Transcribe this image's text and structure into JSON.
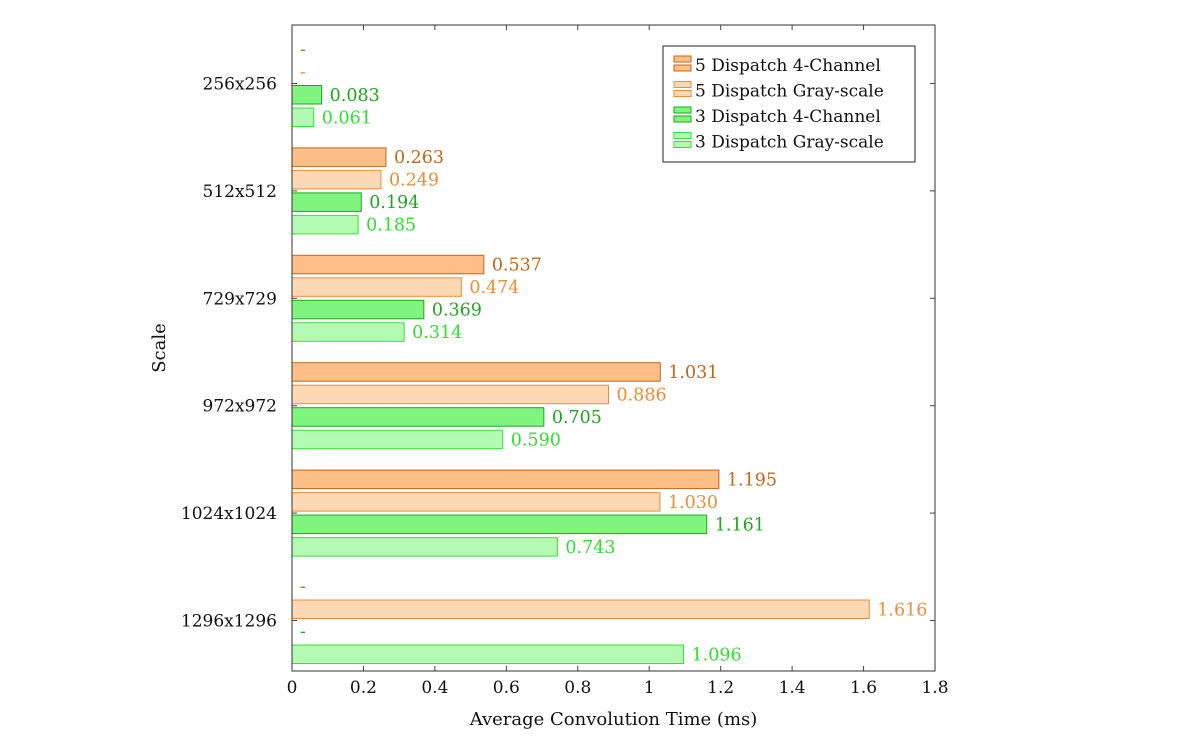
{
  "chart_data": {
    "type": "bar",
    "orientation": "horizontal",
    "title": "",
    "xlabel": "Average Convolution Time (ms)",
    "ylabel": "Scale",
    "xlim": [
      0,
      1.8
    ],
    "xticks": [
      0,
      0.2,
      0.4,
      0.6,
      0.8,
      1,
      1.2,
      1.4,
      1.6,
      1.8
    ],
    "xtick_labels": [
      "0",
      "0.2",
      "0.4",
      "0.6",
      "0.8",
      "1",
      "1.2",
      "1.4",
      "1.6",
      "1.8"
    ],
    "categories": [
      "256x256",
      "512x512",
      "729x729",
      "972x972",
      "1024x1024",
      "1296x1296"
    ],
    "legend_position": "top-right",
    "missing_marker": "-",
    "series": [
      {
        "name": "5 Dispatch 4-Channel",
        "fill": "#fdbf86",
        "stroke": "#c4661a",
        "label_color": "#c4661a",
        "values": [
          null,
          0.263,
          0.537,
          1.031,
          1.195,
          null
        ],
        "labels": [
          "-",
          "0.263",
          "0.537",
          "1.031",
          "1.195",
          "-"
        ]
      },
      {
        "name": "5 Dispatch Gray-scale",
        "fill": "#fdd8b5",
        "stroke": "#f08c33",
        "label_color": "#f08c33",
        "values": [
          null,
          0.249,
          0.474,
          0.886,
          1.03,
          1.616
        ],
        "labels": [
          "-",
          "0.249",
          "0.474",
          "0.886",
          "1.030",
          "1.616"
        ]
      },
      {
        "name": "3 Dispatch 4-Channel",
        "fill": "#7ff57f",
        "stroke": "#1fa61f",
        "label_color": "#1fa61f",
        "values": [
          0.083,
          0.194,
          0.369,
          0.705,
          1.161,
          null
        ],
        "labels": [
          "0.083",
          "0.194",
          "0.369",
          "0.705",
          "1.161",
          "-"
        ]
      },
      {
        "name": "3 Dispatch Gray-scale",
        "fill": "#b3fbb3",
        "stroke": "#33e533",
        "label_color": "#2ee02e",
        "values": [
          0.061,
          0.185,
          0.314,
          0.59,
          0.743,
          1.096
        ],
        "labels": [
          "0.061",
          "0.185",
          "0.314",
          "0.590",
          "0.743",
          "1.096"
        ]
      }
    ]
  }
}
